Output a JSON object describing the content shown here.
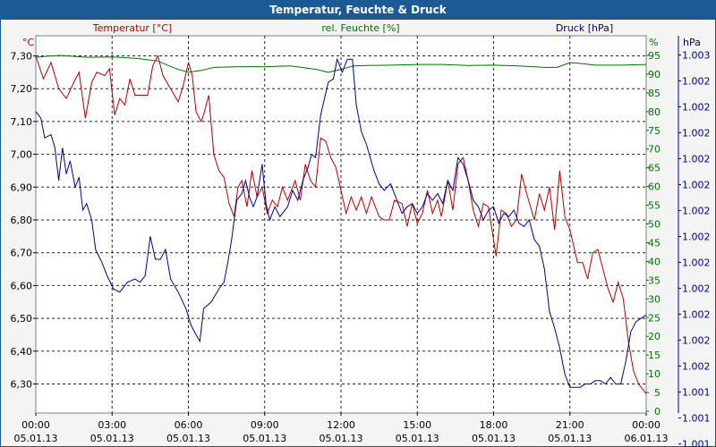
{
  "title": "Temperatur, Feuchte & Druck",
  "chart_data": {
    "type": "line",
    "x_ticks": [
      {
        "time": "00:00",
        "date": "05.01.13"
      },
      {
        "time": "03:00",
        "date": "05.01.13"
      },
      {
        "time": "06:00",
        "date": "05.01.13"
      },
      {
        "time": "09:00",
        "date": "05.01.13"
      },
      {
        "time": "12:00",
        "date": "05.01.13"
      },
      {
        "time": "15:00",
        "date": "05.01.13"
      },
      {
        "time": "18:00",
        "date": "05.01.13"
      },
      {
        "time": "21:00",
        "date": "05.01.13"
      },
      {
        "time": "00:00",
        "date": "06.01.13"
      }
    ],
    "xlim_hours": [
      0,
      24
    ],
    "grid": true,
    "axes": {
      "temp": {
        "unit": "°C",
        "label": "Temperatur [°C]",
        "color": "#b00000",
        "ylim": [
          6.25,
          7.33
        ],
        "ticks": [
          "7,30",
          "7,20",
          "7,10",
          "7,00",
          "6,90",
          "6,80",
          "6,70",
          "6,60",
          "6,50",
          "6,40",
          "6,30"
        ],
        "tick_values": [
          7.3,
          7.2,
          7.1,
          7.0,
          6.9,
          6.8,
          6.7,
          6.6,
          6.5,
          6.4,
          6.3
        ]
      },
      "hum": {
        "unit": "%",
        "label": "rel. Feuchte [%]",
        "color": "#007000",
        "ylim": [
          0,
          100
        ],
        "ticks": [
          "95",
          "90",
          "85",
          "80",
          "75",
          "70",
          "65",
          "60",
          "55",
          "50",
          "45",
          "40",
          "35",
          "30",
          "25",
          "20",
          "15",
          "10",
          "5",
          "0"
        ],
        "tick_values": [
          95,
          90,
          85,
          80,
          75,
          70,
          65,
          60,
          55,
          50,
          45,
          40,
          35,
          30,
          25,
          20,
          15,
          10,
          5,
          0
        ]
      },
      "press": {
        "unit": "hPa",
        "label": "Druck [hPa]",
        "color": "#00008b",
        "ticks": [
          "1.003",
          "1.002",
          "1.002",
          "1.002",
          "1.002",
          "1.002",
          "1.002",
          "1.002",
          "1.002",
          "1.002",
          "1.002",
          "1.002",
          "1.002",
          "1.001",
          "1.001",
          "1.001"
        ]
      }
    },
    "series": [
      {
        "name": "Temperatur [°C]",
        "axis": "temp",
        "color": "#b00000",
        "points": [
          [
            0.0,
            7.3
          ],
          [
            0.3,
            7.23
          ],
          [
            0.6,
            7.28
          ],
          [
            0.9,
            7.2
          ],
          [
            1.2,
            7.17
          ],
          [
            1.5,
            7.22
          ],
          [
            1.7,
            7.25
          ],
          [
            1.95,
            7.11
          ],
          [
            2.2,
            7.22
          ],
          [
            2.4,
            7.25
          ],
          [
            2.7,
            7.24
          ],
          [
            2.9,
            7.26
          ],
          [
            3.1,
            7.12
          ],
          [
            3.3,
            7.17
          ],
          [
            3.5,
            7.15
          ],
          [
            3.7,
            7.23
          ],
          [
            3.9,
            7.18
          ],
          [
            4.1,
            7.18
          ],
          [
            4.4,
            7.18
          ],
          [
            4.6,
            7.27
          ],
          [
            4.8,
            7.3
          ],
          [
            5.0,
            7.24
          ],
          [
            5.3,
            7.2
          ],
          [
            5.6,
            7.16
          ],
          [
            5.8,
            7.21
          ],
          [
            6.0,
            7.28
          ],
          [
            6.15,
            7.24
          ],
          [
            6.3,
            7.13
          ],
          [
            6.5,
            7.1
          ],
          [
            6.6,
            7.12
          ],
          [
            6.8,
            7.18
          ],
          [
            7.0,
            7.0
          ],
          [
            7.2,
            6.95
          ],
          [
            7.4,
            6.93
          ],
          [
            7.6,
            6.85
          ],
          [
            7.8,
            6.81
          ],
          [
            7.95,
            6.9
          ],
          [
            8.1,
            6.92
          ],
          [
            8.3,
            6.84
          ],
          [
            8.5,
            6.95
          ],
          [
            8.7,
            6.87
          ],
          [
            8.9,
            6.9
          ],
          [
            9.1,
            6.82
          ],
          [
            9.3,
            6.86
          ],
          [
            9.5,
            6.84
          ],
          [
            9.7,
            6.9
          ],
          [
            9.9,
            6.86
          ],
          [
            10.2,
            6.92
          ],
          [
            10.4,
            6.86
          ],
          [
            10.6,
            6.97
          ],
          [
            10.8,
            6.92
          ],
          [
            11.0,
            6.9
          ],
          [
            11.2,
            7.05
          ],
          [
            11.4,
            7.04
          ],
          [
            11.6,
            6.99
          ],
          [
            11.8,
            6.96
          ],
          [
            12.0,
            6.89
          ],
          [
            12.2,
            6.82
          ],
          [
            12.4,
            6.87
          ],
          [
            12.6,
            6.83
          ],
          [
            12.8,
            6.87
          ],
          [
            13.0,
            6.82
          ],
          [
            13.2,
            6.87
          ],
          [
            13.5,
            6.81
          ],
          [
            13.7,
            6.8
          ],
          [
            13.9,
            6.8
          ],
          [
            14.1,
            6.86
          ],
          [
            14.4,
            6.85
          ],
          [
            14.6,
            6.78
          ],
          [
            14.8,
            6.85
          ],
          [
            15.0,
            6.79
          ],
          [
            15.2,
            6.82
          ],
          [
            15.4,
            6.89
          ],
          [
            15.6,
            6.82
          ],
          [
            15.8,
            6.86
          ],
          [
            15.95,
            6.81
          ],
          [
            16.2,
            6.92
          ],
          [
            16.4,
            6.83
          ],
          [
            16.6,
            6.97
          ],
          [
            16.8,
            6.99
          ],
          [
            17.0,
            6.92
          ],
          [
            17.2,
            6.83
          ],
          [
            17.4,
            6.78
          ],
          [
            17.6,
            6.85
          ],
          [
            17.8,
            6.84
          ],
          [
            18.1,
            6.69
          ],
          [
            18.3,
            6.83
          ],
          [
            18.5,
            6.82
          ],
          [
            18.7,
            6.78
          ],
          [
            18.9,
            6.8
          ],
          [
            19.1,
            6.94
          ],
          [
            19.3,
            6.88
          ],
          [
            19.6,
            6.8
          ],
          [
            19.8,
            6.88
          ],
          [
            20.0,
            6.83
          ],
          [
            20.2,
            6.9
          ],
          [
            20.4,
            6.77
          ],
          [
            20.6,
            6.95
          ],
          [
            20.8,
            6.81
          ],
          [
            21.0,
            6.77
          ],
          [
            21.3,
            6.67
          ],
          [
            21.5,
            6.67
          ],
          [
            21.7,
            6.62
          ],
          [
            21.9,
            6.7
          ],
          [
            22.1,
            6.71
          ],
          [
            22.3,
            6.65
          ],
          [
            22.5,
            6.59
          ],
          [
            22.7,
            6.55
          ],
          [
            22.9,
            6.61
          ],
          [
            23.1,
            6.56
          ],
          [
            23.3,
            6.43
          ],
          [
            23.5,
            6.34
          ],
          [
            23.7,
            6.3
          ],
          [
            23.9,
            6.28
          ],
          [
            24.0,
            6.27
          ]
        ]
      },
      {
        "name": "rel. Feuchte [%]",
        "axis": "hum",
        "color": "#007000",
        "points": [
          [
            0.0,
            94.5
          ],
          [
            0.5,
            94.8
          ],
          [
            1.0,
            95
          ],
          [
            2.0,
            94.5
          ],
          [
            3.0,
            94.6
          ],
          [
            4.0,
            94.2
          ],
          [
            4.8,
            93.5
          ],
          [
            5.5,
            91.5
          ],
          [
            6.0,
            90.5
          ],
          [
            6.5,
            91
          ],
          [
            7.0,
            91.8
          ],
          [
            8.0,
            92
          ],
          [
            9.0,
            92
          ],
          [
            10.0,
            92.2
          ],
          [
            11.0,
            91.3
          ],
          [
            11.5,
            90.5
          ],
          [
            12.0,
            91.3
          ],
          [
            12.5,
            92.2
          ],
          [
            13.0,
            92.3
          ],
          [
            14.0,
            92.4
          ],
          [
            15.0,
            92.6
          ],
          [
            16.0,
            92.6
          ],
          [
            17.0,
            92.3
          ],
          [
            18.0,
            92.4
          ],
          [
            19.0,
            92.2
          ],
          [
            20.0,
            91.8
          ],
          [
            20.5,
            91.8
          ],
          [
            21.0,
            93.1
          ],
          [
            21.5,
            92.8
          ],
          [
            22.0,
            92.4
          ],
          [
            23.0,
            92.4
          ],
          [
            24.0,
            92.6
          ]
        ]
      },
      {
        "name": "Druck [hPa]",
        "axis": "press",
        "color": "#00008b",
        "points": [
          [
            0.0,
            7.13
          ],
          [
            0.2,
            7.11
          ],
          [
            0.35,
            7.05
          ],
          [
            0.6,
            7.06
          ],
          [
            0.75,
            7.02
          ],
          [
            0.9,
            6.92
          ],
          [
            1.05,
            7.02
          ],
          [
            1.2,
            6.94
          ],
          [
            1.35,
            6.98
          ],
          [
            1.55,
            6.9
          ],
          [
            1.7,
            6.93
          ],
          [
            1.85,
            6.83
          ],
          [
            2.0,
            6.85
          ],
          [
            2.2,
            6.8
          ],
          [
            2.35,
            6.71
          ],
          [
            2.6,
            6.67
          ],
          [
            2.8,
            6.63
          ],
          [
            3.05,
            6.59
          ],
          [
            3.3,
            6.58
          ],
          [
            3.6,
            6.61
          ],
          [
            3.9,
            6.62
          ],
          [
            4.1,
            6.61
          ],
          [
            4.3,
            6.63
          ],
          [
            4.5,
            6.75
          ],
          [
            4.7,
            6.68
          ],
          [
            4.9,
            6.68
          ],
          [
            5.1,
            6.71
          ],
          [
            5.3,
            6.62
          ],
          [
            5.6,
            6.58
          ],
          [
            5.9,
            6.53
          ],
          [
            6.1,
            6.48
          ],
          [
            6.3,
            6.45
          ],
          [
            6.45,
            6.43
          ],
          [
            6.6,
            6.53
          ],
          [
            6.9,
            6.55
          ],
          [
            7.2,
            6.59
          ],
          [
            7.4,
            6.61
          ],
          [
            7.55,
            6.67
          ],
          [
            7.7,
            6.74
          ],
          [
            7.9,
            6.86
          ],
          [
            8.1,
            6.88
          ],
          [
            8.25,
            6.92
          ],
          [
            8.4,
            6.87
          ],
          [
            8.55,
            6.84
          ],
          [
            8.7,
            6.87
          ],
          [
            8.9,
            6.97
          ],
          [
            9.05,
            6.85
          ],
          [
            9.2,
            6.8
          ],
          [
            9.4,
            6.84
          ],
          [
            9.6,
            6.81
          ],
          [
            9.9,
            6.84
          ],
          [
            10.1,
            6.89
          ],
          [
            10.3,
            6.86
          ],
          [
            10.5,
            6.92
          ],
          [
            10.7,
            6.96
          ],
          [
            10.85,
            7.0
          ],
          [
            11.0,
            6.99
          ],
          [
            11.2,
            7.12
          ],
          [
            11.5,
            7.22
          ],
          [
            11.7,
            7.23
          ],
          [
            11.85,
            7.29
          ],
          [
            12.05,
            7.25
          ],
          [
            12.25,
            7.29
          ],
          [
            12.45,
            7.29
          ],
          [
            12.6,
            7.15
          ],
          [
            12.8,
            7.07
          ],
          [
            13.0,
            7.03
          ],
          [
            13.3,
            6.95
          ],
          [
            13.5,
            6.91
          ],
          [
            13.7,
            6.89
          ],
          [
            13.95,
            6.91
          ],
          [
            14.2,
            6.86
          ],
          [
            14.4,
            6.82
          ],
          [
            14.6,
            6.84
          ],
          [
            14.8,
            6.85
          ],
          [
            15.0,
            6.82
          ],
          [
            15.2,
            6.84
          ],
          [
            15.4,
            6.88
          ],
          [
            15.6,
            6.86
          ],
          [
            15.8,
            6.88
          ],
          [
            16.0,
            6.85
          ],
          [
            16.2,
            6.92
          ],
          [
            16.4,
            6.89
          ],
          [
            16.6,
            6.99
          ],
          [
            16.8,
            6.97
          ],
          [
            17.0,
            6.92
          ],
          [
            17.2,
            6.86
          ],
          [
            17.4,
            6.84
          ],
          [
            17.6,
            6.8
          ],
          [
            17.8,
            6.83
          ],
          [
            18.0,
            6.84
          ],
          [
            18.2,
            6.79
          ],
          [
            18.4,
            6.82
          ],
          [
            18.6,
            6.81
          ],
          [
            18.8,
            6.83
          ],
          [
            19.0,
            6.79
          ],
          [
            19.2,
            6.78
          ],
          [
            19.4,
            6.8
          ],
          [
            19.6,
            6.74
          ],
          [
            19.8,
            6.72
          ],
          [
            20.0,
            6.65
          ],
          [
            20.2,
            6.52
          ],
          [
            20.4,
            6.47
          ],
          [
            20.6,
            6.41
          ],
          [
            20.8,
            6.33
          ],
          [
            21.0,
            6.29
          ],
          [
            21.2,
            6.29
          ],
          [
            21.4,
            6.29
          ],
          [
            21.6,
            6.3
          ],
          [
            21.8,
            6.3
          ],
          [
            22.0,
            6.31
          ],
          [
            22.2,
            6.31
          ],
          [
            22.4,
            6.3
          ],
          [
            22.6,
            6.32
          ],
          [
            22.8,
            6.3
          ],
          [
            23.0,
            6.3
          ],
          [
            23.2,
            6.37
          ],
          [
            23.4,
            6.46
          ],
          [
            23.6,
            6.49
          ],
          [
            23.8,
            6.5
          ],
          [
            24.0,
            6.51
          ]
        ]
      }
    ]
  }
}
